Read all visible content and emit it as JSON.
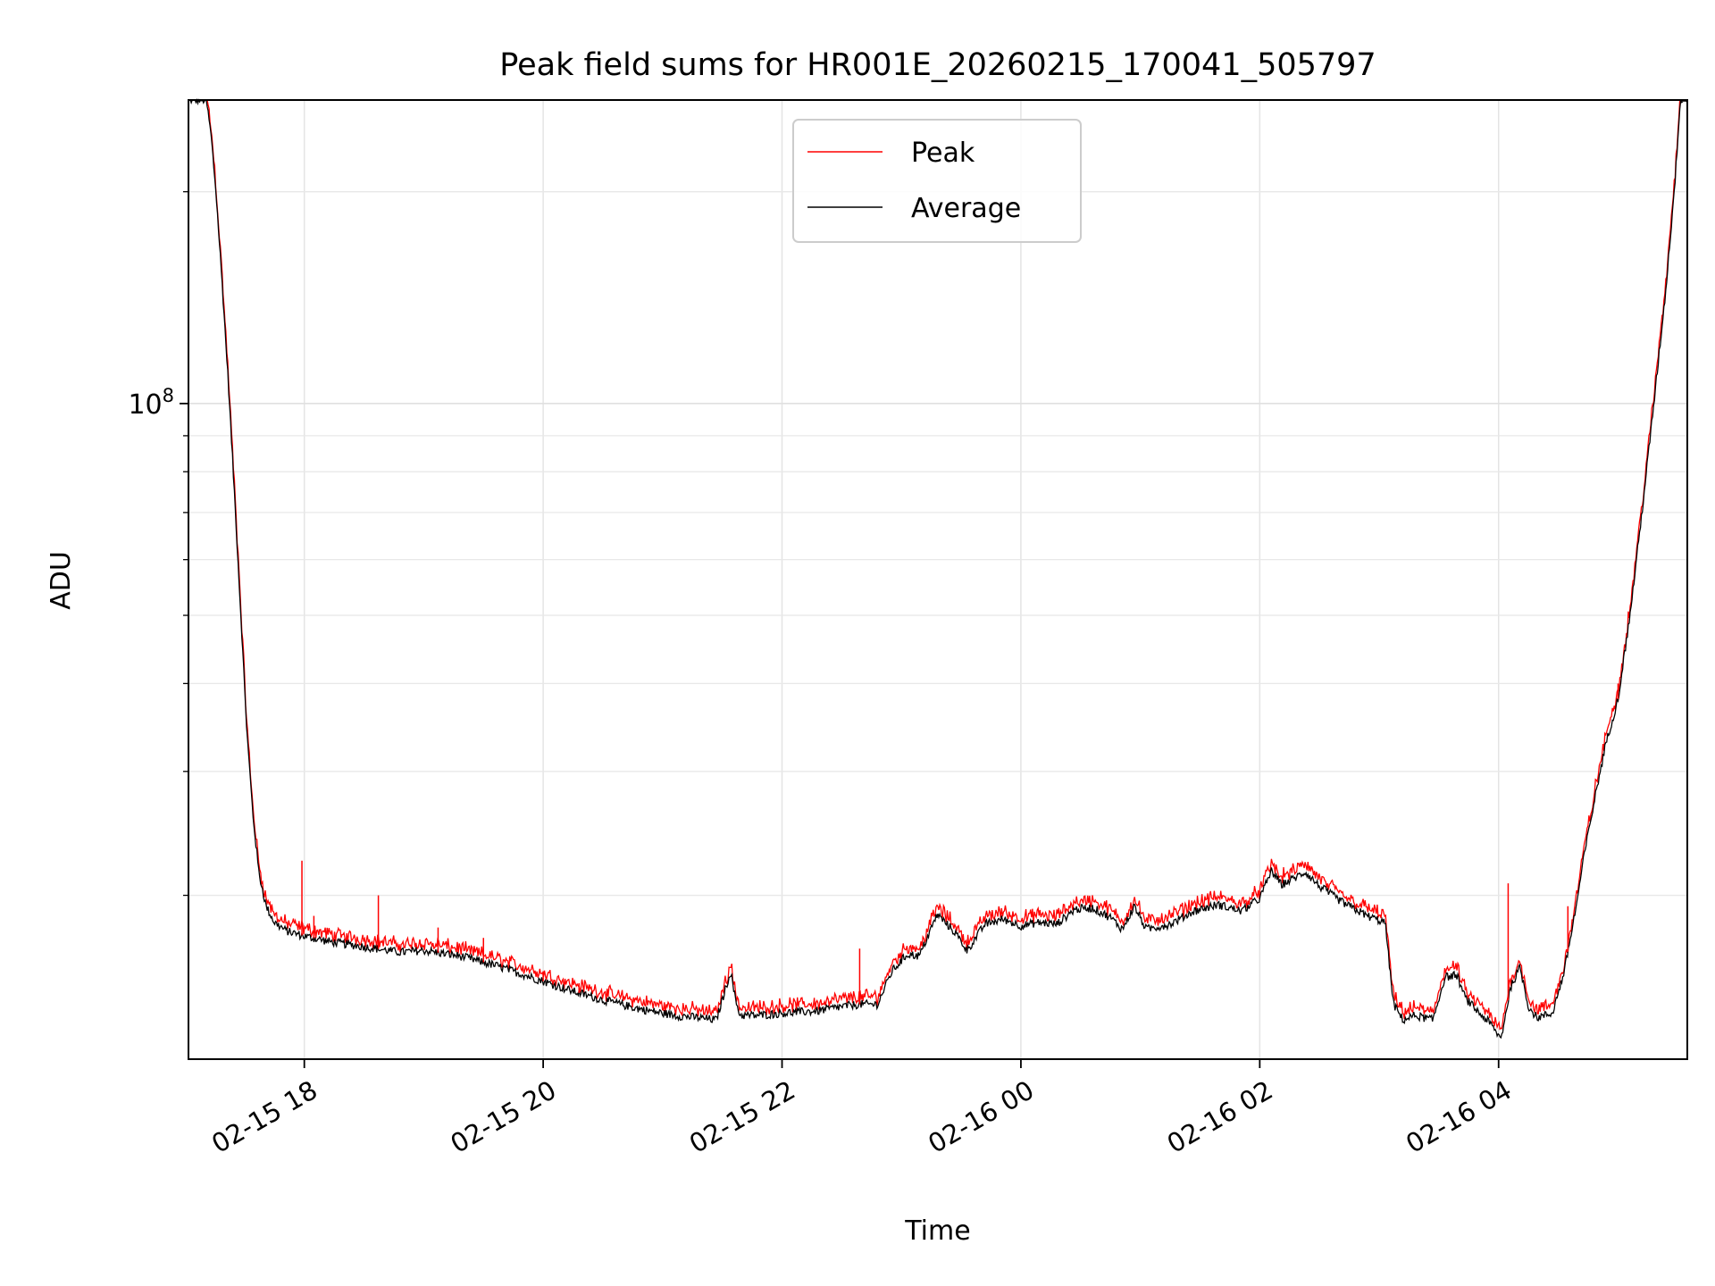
{
  "chart_data": {
    "type": "line",
    "title": "Peak field sums for HR001E_20260215_170041_505797",
    "xlabel": "Time",
    "ylabel": "ADU",
    "yscale": "log",
    "ylim": [
      11700000,
      270000000
    ],
    "xlim": [
      17.03,
      29.58
    ],
    "xunit": "hours since 2026-02-15 00:00",
    "grid": true,
    "legend_location": "top-center",
    "x_ticks": [
      {
        "value": 18,
        "label": "02-15 18"
      },
      {
        "value": 20,
        "label": "02-15 20"
      },
      {
        "value": 22,
        "label": "02-15 22"
      },
      {
        "value": 24,
        "label": "02-16 00"
      },
      {
        "value": 26,
        "label": "02-16 02"
      },
      {
        "value": 28,
        "label": "02-16 04"
      }
    ],
    "y_major_ticks": [
      {
        "value": 100000000,
        "base": "10",
        "exp": "8"
      }
    ],
    "y_minor_ticks": [
      20000000,
      30000000,
      40000000,
      50000000,
      60000000,
      70000000,
      80000000,
      90000000,
      200000000
    ],
    "series": [
      {
        "name": "Peak",
        "color": "#ff0000"
      },
      {
        "name": "Average",
        "color": "#000000"
      }
    ],
    "average_points": [
      [
        17.03,
        270000000
      ],
      [
        17.18,
        270000000
      ],
      [
        17.22,
        240000000
      ],
      [
        17.26,
        200000000
      ],
      [
        17.31,
        150000000
      ],
      [
        17.36,
        110000000
      ],
      [
        17.42,
        72000000
      ],
      [
        17.48,
        46000000
      ],
      [
        17.52,
        34000000
      ],
      [
        17.57,
        26000000
      ],
      [
        17.62,
        21500000
      ],
      [
        17.68,
        19300000
      ],
      [
        17.75,
        18300000
      ],
      [
        17.85,
        17800000
      ],
      [
        18.0,
        17500000
      ],
      [
        18.2,
        17200000
      ],
      [
        18.5,
        16900000
      ],
      [
        18.8,
        16600000
      ],
      [
        19.0,
        16700000
      ],
      [
        19.3,
        16400000
      ],
      [
        19.6,
        15900000
      ],
      [
        19.9,
        15300000
      ],
      [
        20.2,
        14700000
      ],
      [
        20.5,
        14200000
      ],
      [
        20.8,
        13800000
      ],
      [
        21.1,
        13500000
      ],
      [
        21.3,
        13400000
      ],
      [
        21.45,
        13300000
      ],
      [
        21.52,
        14600000
      ],
      [
        21.57,
        15600000
      ],
      [
        21.61,
        14200000
      ],
      [
        21.65,
        13500000
      ],
      [
        21.8,
        13500000
      ],
      [
        22.0,
        13600000
      ],
      [
        22.3,
        13700000
      ],
      [
        22.5,
        13900000
      ],
      [
        22.65,
        14000000
      ],
      [
        22.8,
        14000000
      ],
      [
        22.92,
        15600000
      ],
      [
        23.05,
        16500000
      ],
      [
        23.15,
        16400000
      ],
      [
        23.3,
        18800000
      ],
      [
        23.45,
        17700000
      ],
      [
        23.55,
        16700000
      ],
      [
        23.7,
        18200000
      ],
      [
        23.85,
        18500000
      ],
      [
        24.0,
        18100000
      ],
      [
        24.15,
        18300000
      ],
      [
        24.3,
        18200000
      ],
      [
        24.45,
        19100000
      ],
      [
        24.6,
        19200000
      ],
      [
        24.75,
        18600000
      ],
      [
        24.85,
        17900000
      ],
      [
        24.95,
        19300000
      ],
      [
        25.05,
        17900000
      ],
      [
        25.25,
        18200000
      ],
      [
        25.45,
        19000000
      ],
      [
        25.65,
        19400000
      ],
      [
        25.85,
        19000000
      ],
      [
        26.0,
        19800000
      ],
      [
        26.1,
        21700000
      ],
      [
        26.18,
        20700000
      ],
      [
        26.3,
        21200000
      ],
      [
        26.38,
        21600000
      ],
      [
        26.5,
        20600000
      ],
      [
        26.7,
        19500000
      ],
      [
        26.9,
        18700000
      ],
      [
        27.05,
        18300000
      ],
      [
        27.12,
        14000000
      ],
      [
        27.2,
        13300000
      ],
      [
        27.3,
        13500000
      ],
      [
        27.45,
        13300000
      ],
      [
        27.55,
        15300000
      ],
      [
        27.65,
        15400000
      ],
      [
        27.72,
        14300000
      ],
      [
        27.82,
        13700000
      ],
      [
        27.92,
        13200000
      ],
      [
        28.02,
        12500000
      ],
      [
        28.1,
        14800000
      ],
      [
        28.18,
        15800000
      ],
      [
        28.25,
        13900000
      ],
      [
        28.32,
        13400000
      ],
      [
        28.45,
        13600000
      ],
      [
        28.55,
        15600000
      ],
      [
        28.65,
        19300000
      ],
      [
        28.72,
        23000000
      ],
      [
        28.82,
        28300000
      ],
      [
        28.9,
        33000000
      ],
      [
        29.0,
        38000000
      ],
      [
        29.1,
        50000000
      ],
      [
        29.2,
        70000000
      ],
      [
        29.3,
        100000000
      ],
      [
        29.4,
        145000000
      ],
      [
        29.48,
        210000000
      ],
      [
        29.52,
        270000000
      ],
      [
        29.58,
        270000000
      ]
    ],
    "peak_spikes": [
      [
        17.98,
        22400000
      ],
      [
        18.08,
        18700000
      ],
      [
        18.62,
        20000000
      ],
      [
        19.12,
        18000000
      ],
      [
        19.5,
        17400000
      ],
      [
        20.0,
        15600000
      ],
      [
        20.3,
        15000000
      ],
      [
        22.65,
        16800000
      ],
      [
        28.08,
        20800000
      ],
      [
        28.58,
        19300000
      ],
      [
        29.0,
        40000000
      ]
    ]
  }
}
